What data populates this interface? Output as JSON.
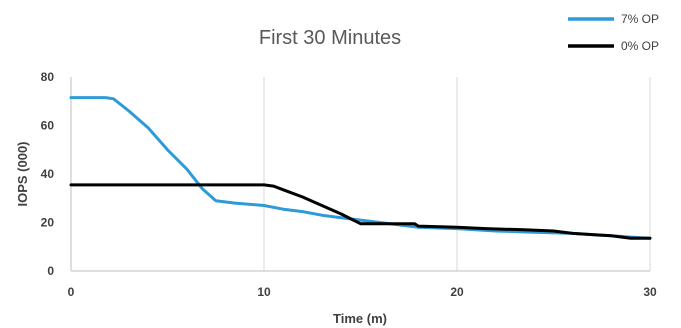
{
  "chart_data": {
    "type": "line",
    "title": "First 30 Minutes",
    "xlabel": "Time (m)",
    "ylabel": "IOPS (000)",
    "xlim": [
      0,
      30
    ],
    "ylim": [
      0,
      80
    ],
    "xticks": [
      0,
      10,
      20,
      30
    ],
    "yticks": [
      0,
      20,
      40,
      60,
      80
    ],
    "grid": "vertical",
    "legend": "top-right",
    "series": [
      {
        "name": "7% OP",
        "color": "#2E9BD6",
        "x": [
          0,
          1.8,
          2.2,
          3.0,
          4.0,
          5.0,
          6.0,
          6.8,
          7.5,
          8.5,
          10.0,
          11.0,
          12.0,
          13.0,
          14.0,
          15.0,
          16.0,
          17.0,
          18.0,
          20.0,
          22.0,
          24.0,
          26.0,
          27.0,
          28.0,
          29.0,
          30.0
        ],
        "y": [
          71.5,
          71.5,
          71,
          66,
          59,
          50,
          42,
          34,
          29,
          28,
          27,
          25.5,
          24.5,
          23,
          22,
          21,
          20,
          19,
          18,
          17.5,
          16.5,
          16,
          15.5,
          15,
          14.5,
          14,
          13.5
        ]
      },
      {
        "name": "0% OP",
        "color": "#000000",
        "x": [
          0,
          10.0,
          10.5,
          11.0,
          12.0,
          13.0,
          14.0,
          15.0,
          17.8,
          18.0,
          20.0,
          21.5,
          23.5,
          25.0,
          26.0,
          27.0,
          28.0,
          29.0,
          30.0
        ],
        "y": [
          35.5,
          35.5,
          35,
          33.5,
          30.5,
          27,
          23.5,
          19.5,
          19.5,
          18.5,
          18,
          17.5,
          17,
          16.5,
          15.5,
          15,
          14.5,
          13.5,
          13.5
        ]
      }
    ]
  }
}
